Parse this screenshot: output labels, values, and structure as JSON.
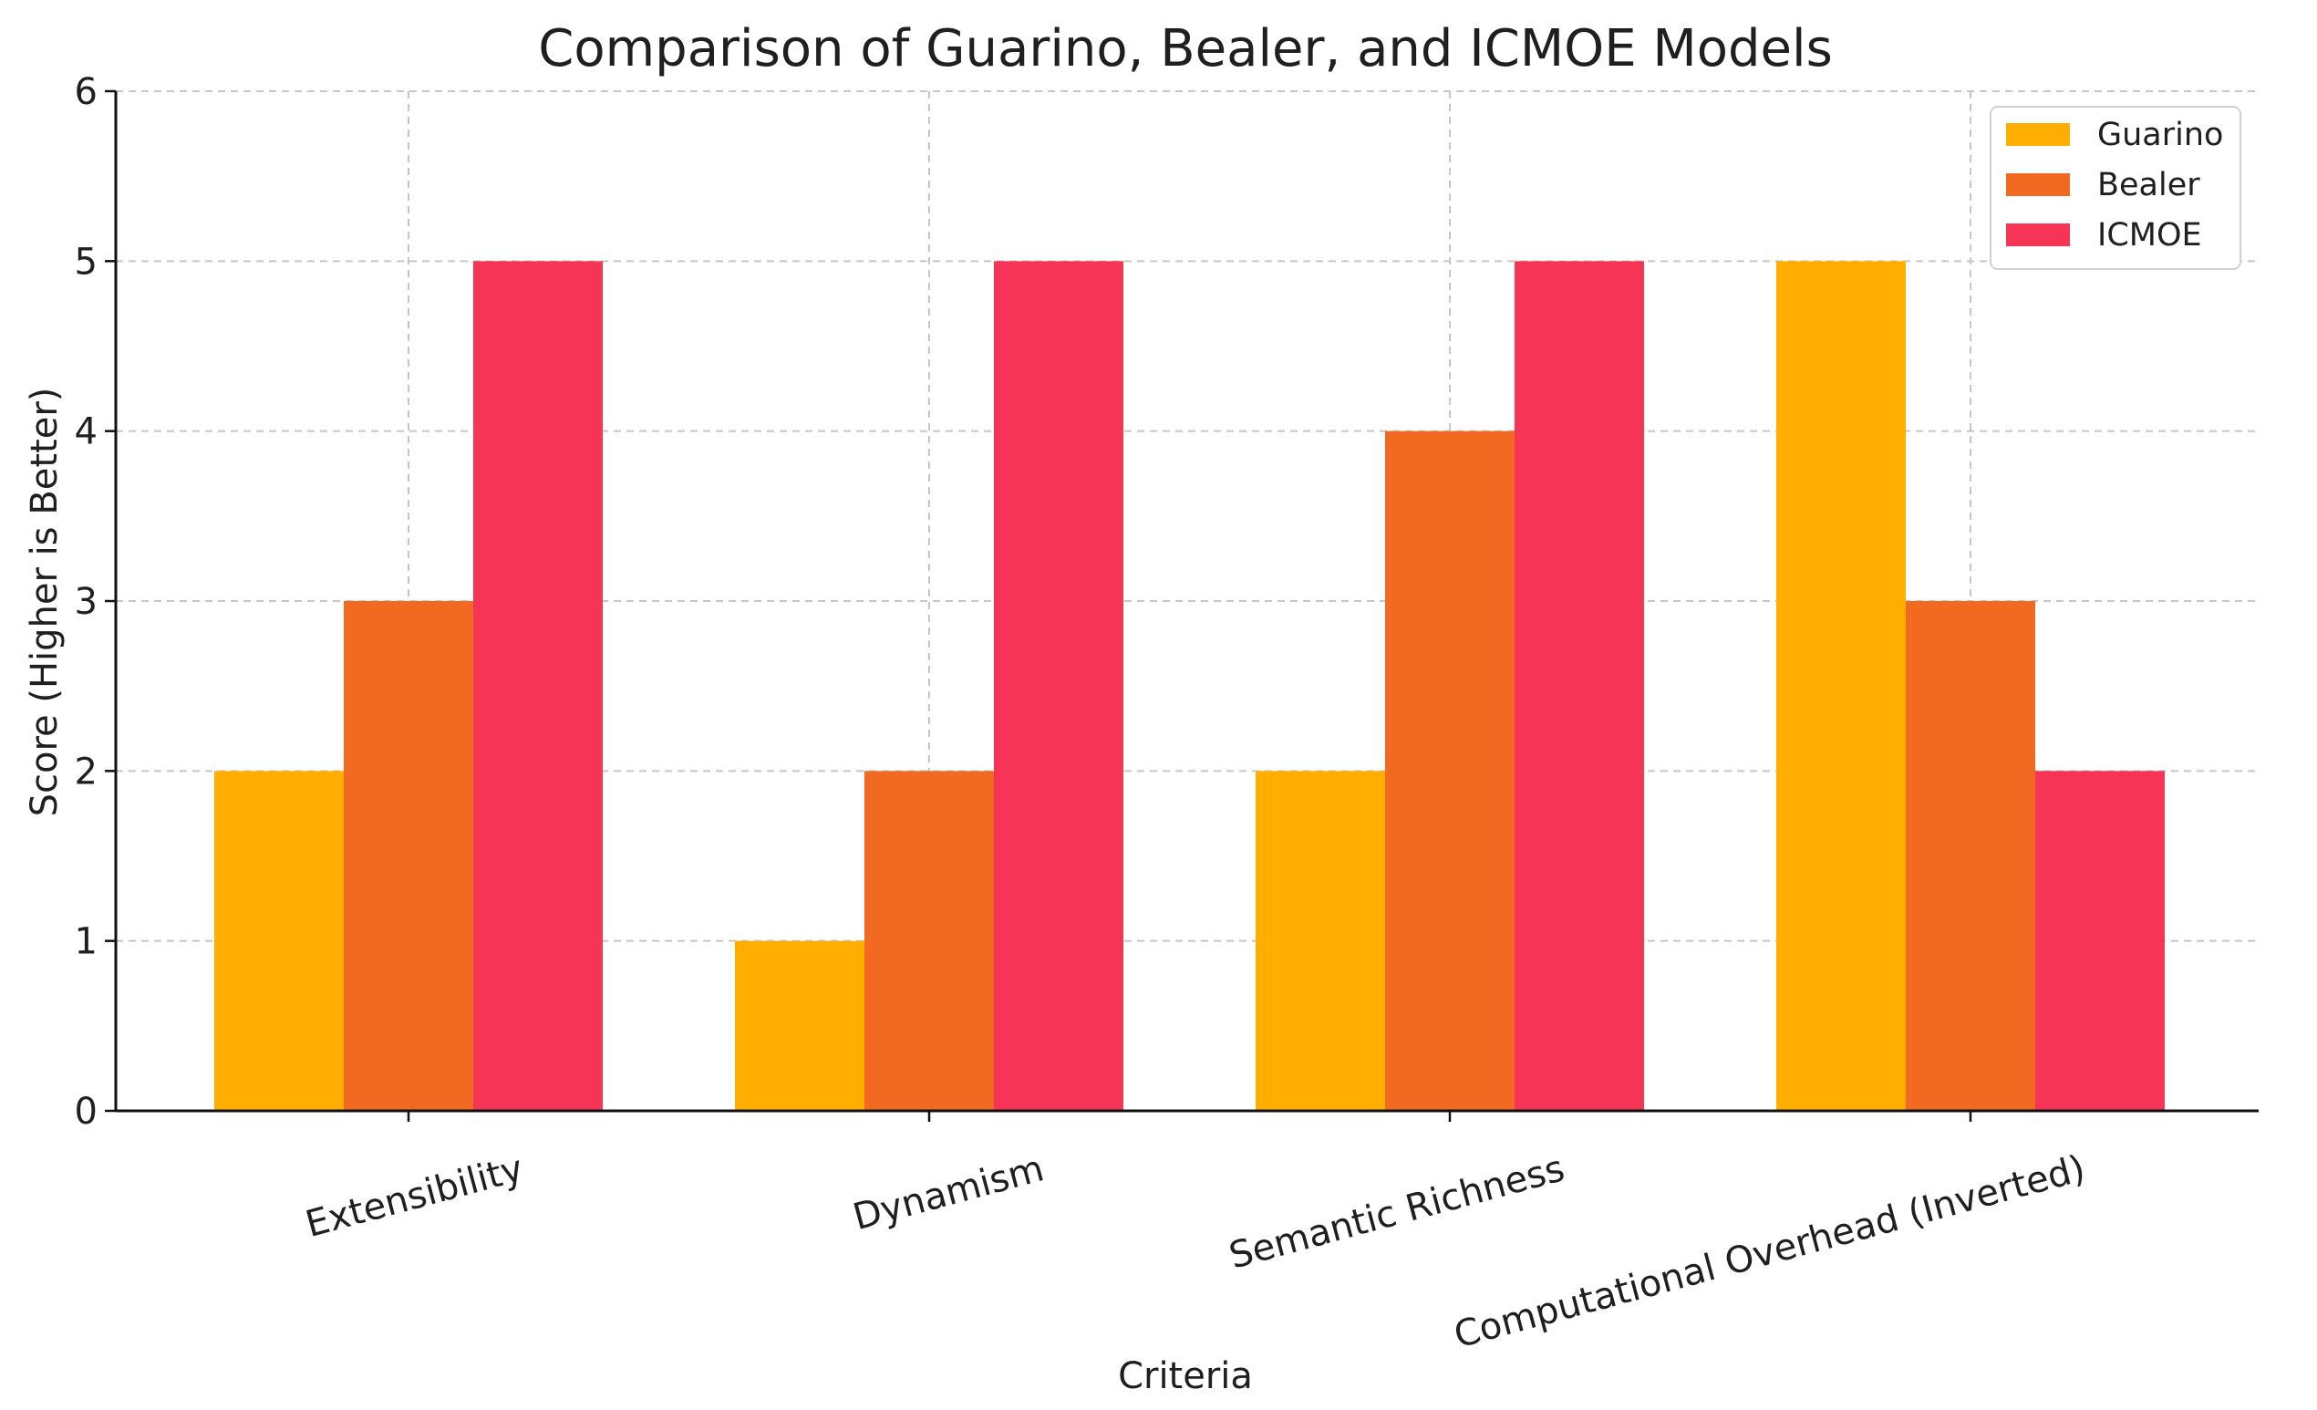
{
  "chart_data": {
    "type": "bar",
    "title": "Comparison of Guarino, Bealer, and ICMOE Models",
    "xlabel": "Criteria",
    "ylabel": "Score (Higher is Better)",
    "categories": [
      "Extensibility",
      "Dynamism",
      "Semantic Richness",
      "Computational Overhead (Inverted)"
    ],
    "series": [
      {
        "name": "Guarino",
        "color": "#FFAE00",
        "values": [
          2,
          1,
          2,
          5
        ]
      },
      {
        "name": "Bealer",
        "color": "#F26922",
        "values": [
          3,
          2,
          4,
          3
        ]
      },
      {
        "name": "ICMOE",
        "color": "#F63456",
        "values": [
          5,
          5,
          5,
          2
        ]
      }
    ],
    "ylim": [
      0,
      6
    ],
    "yticks": [
      0,
      1,
      2,
      3,
      4,
      5,
      6
    ],
    "grid": true,
    "legend_position": "top-right",
    "xtick_rotation_deg": -15
  }
}
